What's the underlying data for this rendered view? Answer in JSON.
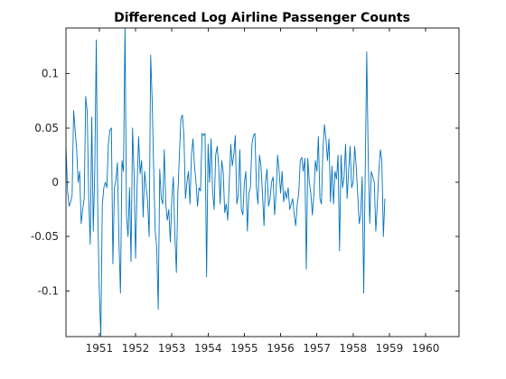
{
  "chart_data": {
    "type": "line",
    "title": "Differenced Log Airline Passenger Counts",
    "xlabel": "",
    "ylabel": "",
    "xlim": [
      1950.08,
      1960.92
    ],
    "ylim": [
      -0.142,
      0.142
    ],
    "x_ticks": [
      1951,
      1952,
      1953,
      1954,
      1955,
      1956,
      1957,
      1958,
      1959,
      1960
    ],
    "x_tick_labels": [
      "1951",
      "1952",
      "1953",
      "1954",
      "1955",
      "1956",
      "1957",
      "1958",
      "1959",
      "1960"
    ],
    "y_ticks": [
      -0.1,
      -0.05,
      0,
      0.05,
      0.1
    ],
    "y_tick_labels": [
      "-0.1",
      "-0.05",
      "0",
      "0.05",
      "0.1"
    ],
    "grid": false,
    "box": true,
    "series": [
      {
        "color": "#0072BD",
        "x_start": 1950.083,
        "x_step": 0.04167,
        "values": [
          0.032,
          -0.008,
          -0.022,
          -0.018,
          -0.012,
          0.066,
          0.048,
          0.03,
          0.0,
          0.01,
          -0.038,
          -0.025,
          -0.015,
          0.079,
          0.065,
          -0.015,
          -0.057,
          0.06,
          -0.045,
          0.01,
          0.131,
          -0.03,
          -0.1,
          -0.142,
          -0.02,
          -0.005,
          0.0,
          -0.005,
          0.035,
          0.048,
          0.05,
          -0.075,
          -0.005,
          0.002,
          0.018,
          -0.055,
          -0.102,
          0.02,
          0.01,
          0.145,
          -0.03,
          -0.05,
          -0.005,
          -0.073,
          0.05,
          0.007,
          -0.07,
          -0.005,
          0.042,
          0.008,
          0.02,
          -0.032,
          0.01,
          -0.005,
          -0.018,
          -0.05,
          0.117,
          0.075,
          0.01,
          -0.045,
          -0.06,
          -0.117,
          0.012,
          -0.015,
          -0.02,
          0.03,
          -0.02,
          -0.035,
          -0.025,
          -0.055,
          -0.015,
          0.005,
          -0.048,
          -0.083,
          -0.01,
          0.025,
          0.058,
          0.062,
          0.043,
          -0.015,
          0.0,
          0.01,
          -0.02,
          0.025,
          0.04,
          0.015,
          0.0,
          -0.022,
          -0.005,
          -0.008,
          0.045,
          0.043,
          0.045,
          -0.087,
          0.035,
          0.0,
          0.04,
          -0.008,
          -0.025,
          0.025,
          0.033,
          0.015,
          -0.02,
          0.02,
          0.01,
          -0.028,
          -0.02,
          -0.035,
          0.0,
          0.035,
          0.015,
          0.025,
          0.043,
          -0.02,
          -0.012,
          0.03,
          -0.025,
          -0.03,
          0.0,
          0.01,
          -0.045,
          -0.01,
          -0.005,
          0.035,
          0.043,
          0.045,
          -0.005,
          -0.02,
          0.025,
          0.015,
          -0.01,
          -0.04,
          0.0,
          0.012,
          -0.022,
          -0.015,
          0.0,
          0.005,
          -0.03,
          -0.01,
          0.025,
          0.01,
          -0.01,
          0.01,
          -0.018,
          -0.008,
          -0.015,
          -0.005,
          -0.025,
          -0.02,
          -0.015,
          -0.03,
          -0.04,
          -0.02,
          -0.01,
          0.02,
          0.023,
          0.01,
          0.022,
          -0.08,
          0.022,
          0.0,
          -0.01,
          -0.03,
          -0.012,
          0.02,
          0.01,
          0.042,
          -0.015,
          -0.02,
          0.03,
          0.053,
          0.04,
          0.02,
          0.04,
          -0.018,
          0.015,
          -0.02,
          0.01,
          0.003,
          0.025,
          -0.063,
          0.025,
          -0.005,
          0.005,
          0.035,
          -0.015,
          0.01,
          0.033,
          -0.005,
          0.0,
          0.033,
          0.015,
          -0.01,
          -0.038,
          -0.03,
          0.005,
          -0.102,
          0.01,
          0.12,
          0.02,
          -0.038,
          0.01,
          0.005,
          0.0,
          -0.045,
          -0.02,
          0.01,
          0.03,
          0.02,
          -0.05,
          -0.015
        ]
      }
    ]
  }
}
